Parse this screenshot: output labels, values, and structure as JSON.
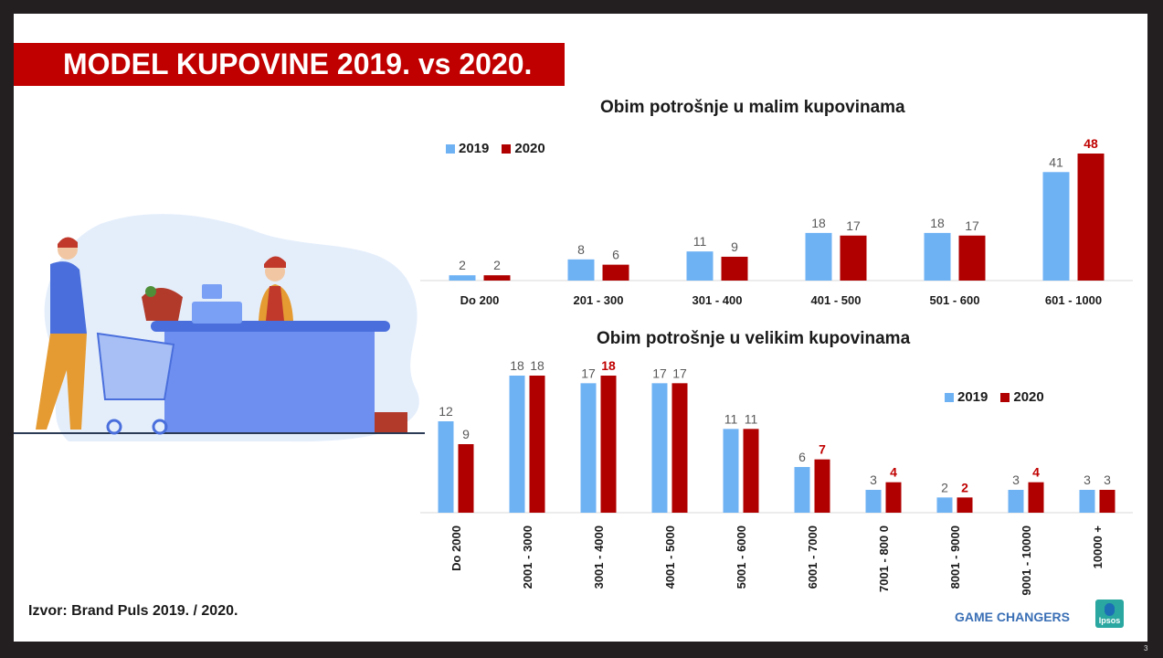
{
  "title": "MODEL KUPOVINE 2019. vs 2020.",
  "source": "Izvor: Brand Puls 2019. / 2020.",
  "footer": {
    "brand_text": "GAME CHANGERS",
    "logo_text": "Ipsos"
  },
  "page_number": "3",
  "colors": {
    "y2019": "#6fb2f4",
    "y2020": "#b00000",
    "highlight_label": "#c00000",
    "banner": "#c00000"
  },
  "chart_data": [
    {
      "type": "bar",
      "title": "Obim potrošnje u malim kupovinama",
      "categories": [
        "Do 200",
        "201 - 300",
        "301 - 400",
        "401 - 500",
        "501 - 600",
        "601 - 1000"
      ],
      "series": [
        {
          "name": "2019",
          "values": [
            2,
            8,
            11,
            18,
            18,
            41
          ]
        },
        {
          "name": "2020",
          "values": [
            2,
            6,
            9,
            17,
            17,
            48
          ],
          "highlighted": [
            false,
            false,
            false,
            false,
            false,
            true
          ]
        }
      ],
      "ylim": [
        0,
        48
      ],
      "legend": "top-left",
      "grid": false
    },
    {
      "type": "bar",
      "title": "Obim potrošnje u velikim kupovinama",
      "categories": [
        "Do 2000",
        "2001 - 3000",
        "3001 - 4000",
        "4001 - 5000",
        "5001 - 6000",
        "6001 - 7000",
        "7001 - 800 0",
        "8001 - 9000",
        "9001 - 10000",
        "10000 +"
      ],
      "series": [
        {
          "name": "2019",
          "values": [
            12,
            18,
            17,
            17,
            11,
            6,
            3,
            2,
            3,
            3
          ]
        },
        {
          "name": "2020",
          "values": [
            9,
            18,
            18,
            17,
            11,
            7,
            4,
            2,
            4,
            3
          ],
          "highlighted": [
            false,
            false,
            true,
            false,
            false,
            true,
            true,
            true,
            true,
            false
          ]
        }
      ],
      "ylim": [
        0,
        18
      ],
      "legend": "top-right",
      "grid": false
    }
  ]
}
